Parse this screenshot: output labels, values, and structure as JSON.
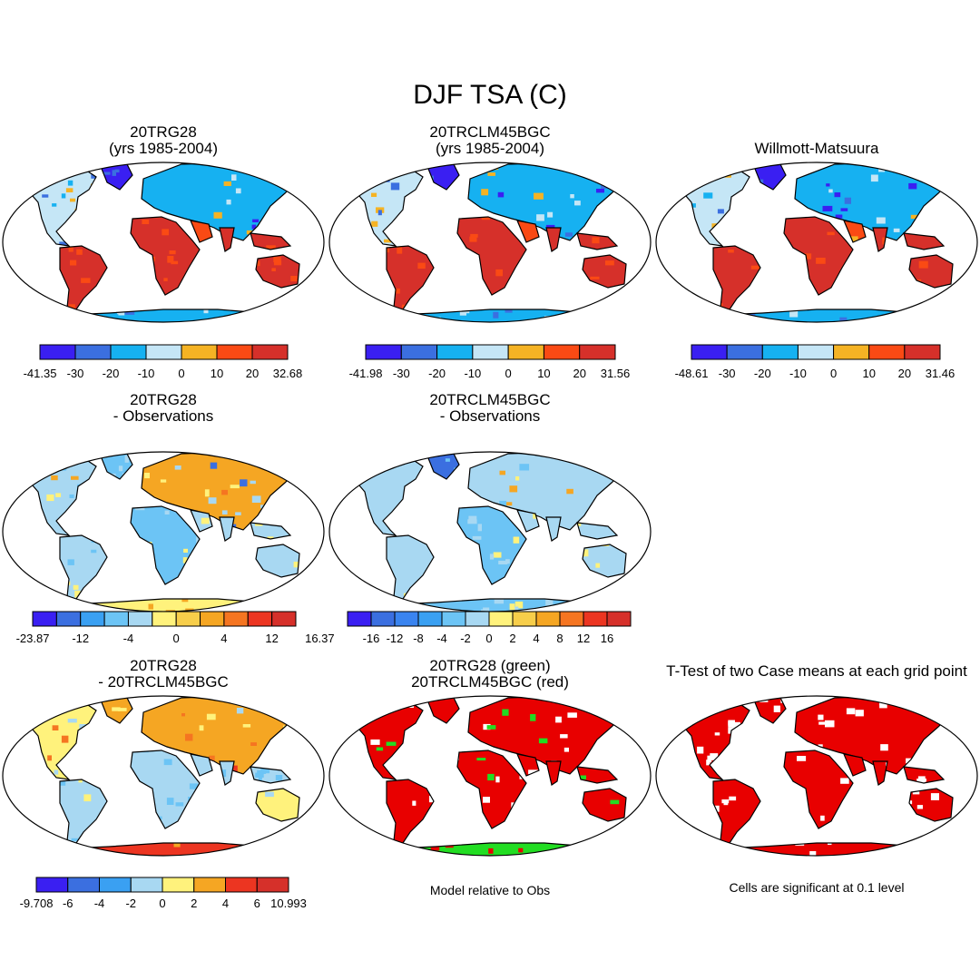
{
  "figure_title": "DJF TSA (C)",
  "panels": [
    {
      "title1": "20TRG28",
      "title2": "(yrs 1985-2004)",
      "kind": "abs",
      "cbar": 0
    },
    {
      "title1": "20TRCLM45BGC",
      "title2": "(yrs 1985-2004)",
      "kind": "abs",
      "cbar": 1
    },
    {
      "title1": "Willmott-Matsuura",
      "title2": "",
      "kind": "abs",
      "cbar": 2
    },
    {
      "title1": "20TRG28",
      "title2": "- Observations",
      "kind": "bias1",
      "cbar": 3
    },
    {
      "title1": "20TRCLM45BGC",
      "title2": "- Observations",
      "kind": "bias2",
      "cbar": 4
    },
    {
      "title1": "20TRG28",
      "title2": "- 20TRCLM45BGC",
      "kind": "diff",
      "cbar": 5
    },
    {
      "title1": "20TRG28 (green)",
      "title2": "20TRCLM45BGC (red)",
      "kind": "rg",
      "note": "Model relative to Obs"
    },
    {
      "title1": "T-Test of two Case means at each grid point",
      "title2": "",
      "kind": "ttest",
      "note": "Cells are significant at 0.1 level"
    }
  ],
  "colorbars": [
    {
      "colors": [
        "#3a1ff2",
        "#3b6fe0",
        "#16b1f1",
        "#c5e6f6",
        "#f5b324",
        "#fa4a14",
        "#d6302a"
      ],
      "labels": [
        "-41.35",
        "-30",
        "-20",
        "-10",
        "0",
        "10",
        "20",
        "32.68"
      ]
    },
    {
      "colors": [
        "#3a1ff2",
        "#3b6fe0",
        "#16b1f1",
        "#c5e6f6",
        "#f5b324",
        "#fa4a14",
        "#d6302a"
      ],
      "labels": [
        "-41.98",
        "-30",
        "-20",
        "-10",
        "0",
        "10",
        "20",
        "31.56"
      ]
    },
    {
      "colors": [
        "#3a1ff2",
        "#3b6fe0",
        "#16b1f1",
        "#c5e6f6",
        "#f5b324",
        "#fa4a14",
        "#d6302a"
      ],
      "labels": [
        "-48.61",
        "-30",
        "-20",
        "-10",
        "0",
        "10",
        "20",
        "31.46"
      ]
    },
    {
      "colors": [
        "#3a1ff2",
        "#3b6fe0",
        "#3aa0f2",
        "#6cc4f5",
        "#a8d8f2",
        "#fff27c",
        "#f7ce4a",
        "#f5a623",
        "#f57521",
        "#ec3521",
        "#d6302a"
      ],
      "labels": [
        "-23.87",
        "-12",
        "-4",
        "0",
        "4",
        "12",
        "16.37"
      ],
      "labelBounds": [
        0,
        2,
        4,
        6,
        8,
        10,
        12
      ]
    },
    {
      "colors": [
        "#3a1ff2",
        "#3b6fe0",
        "#3a84f0",
        "#3aa0f2",
        "#6cc4f5",
        "#a8d8f2",
        "#fff27c",
        "#f7ce4a",
        "#f5a623",
        "#f57521",
        "#ec3521",
        "#d6302a"
      ],
      "labels": [
        "-16",
        "-12",
        "-8",
        "-4",
        "-2",
        "0",
        "2",
        "4",
        "8",
        "12",
        "16"
      ],
      "labelBounds": [
        1,
        2,
        3,
        4,
        5,
        6,
        7,
        8,
        9,
        10,
        11
      ]
    },
    {
      "colors": [
        "#3a1ff2",
        "#3b6fe0",
        "#3aa0f2",
        "#a8d8f2",
        "#fff27c",
        "#f5a623",
        "#ec3521",
        "#d6302a"
      ],
      "labels": [
        "-9.708",
        "-6",
        "-4",
        "-2",
        "0",
        "2",
        "4",
        "6",
        "10.993"
      ]
    }
  ],
  "colors": {
    "ocean": "#ffffff",
    "outline": "#000000",
    "green": "#22dd22",
    "red": "#e80000",
    "abs_hot": "#d6302a",
    "abs_warm": "#fa4a14",
    "abs_mild": "#f5b324",
    "abs_cool": "#c5e6f6",
    "abs_cold": "#16b1f1",
    "abs_vcold": "#3b6fe0",
    "abs_xcold": "#3a1ff2",
    "bias_blue": "#a8d8f2",
    "bias_lblue": "#6cc4f5",
    "bias_yellow": "#fff27c",
    "bias_orange": "#f5a623"
  }
}
